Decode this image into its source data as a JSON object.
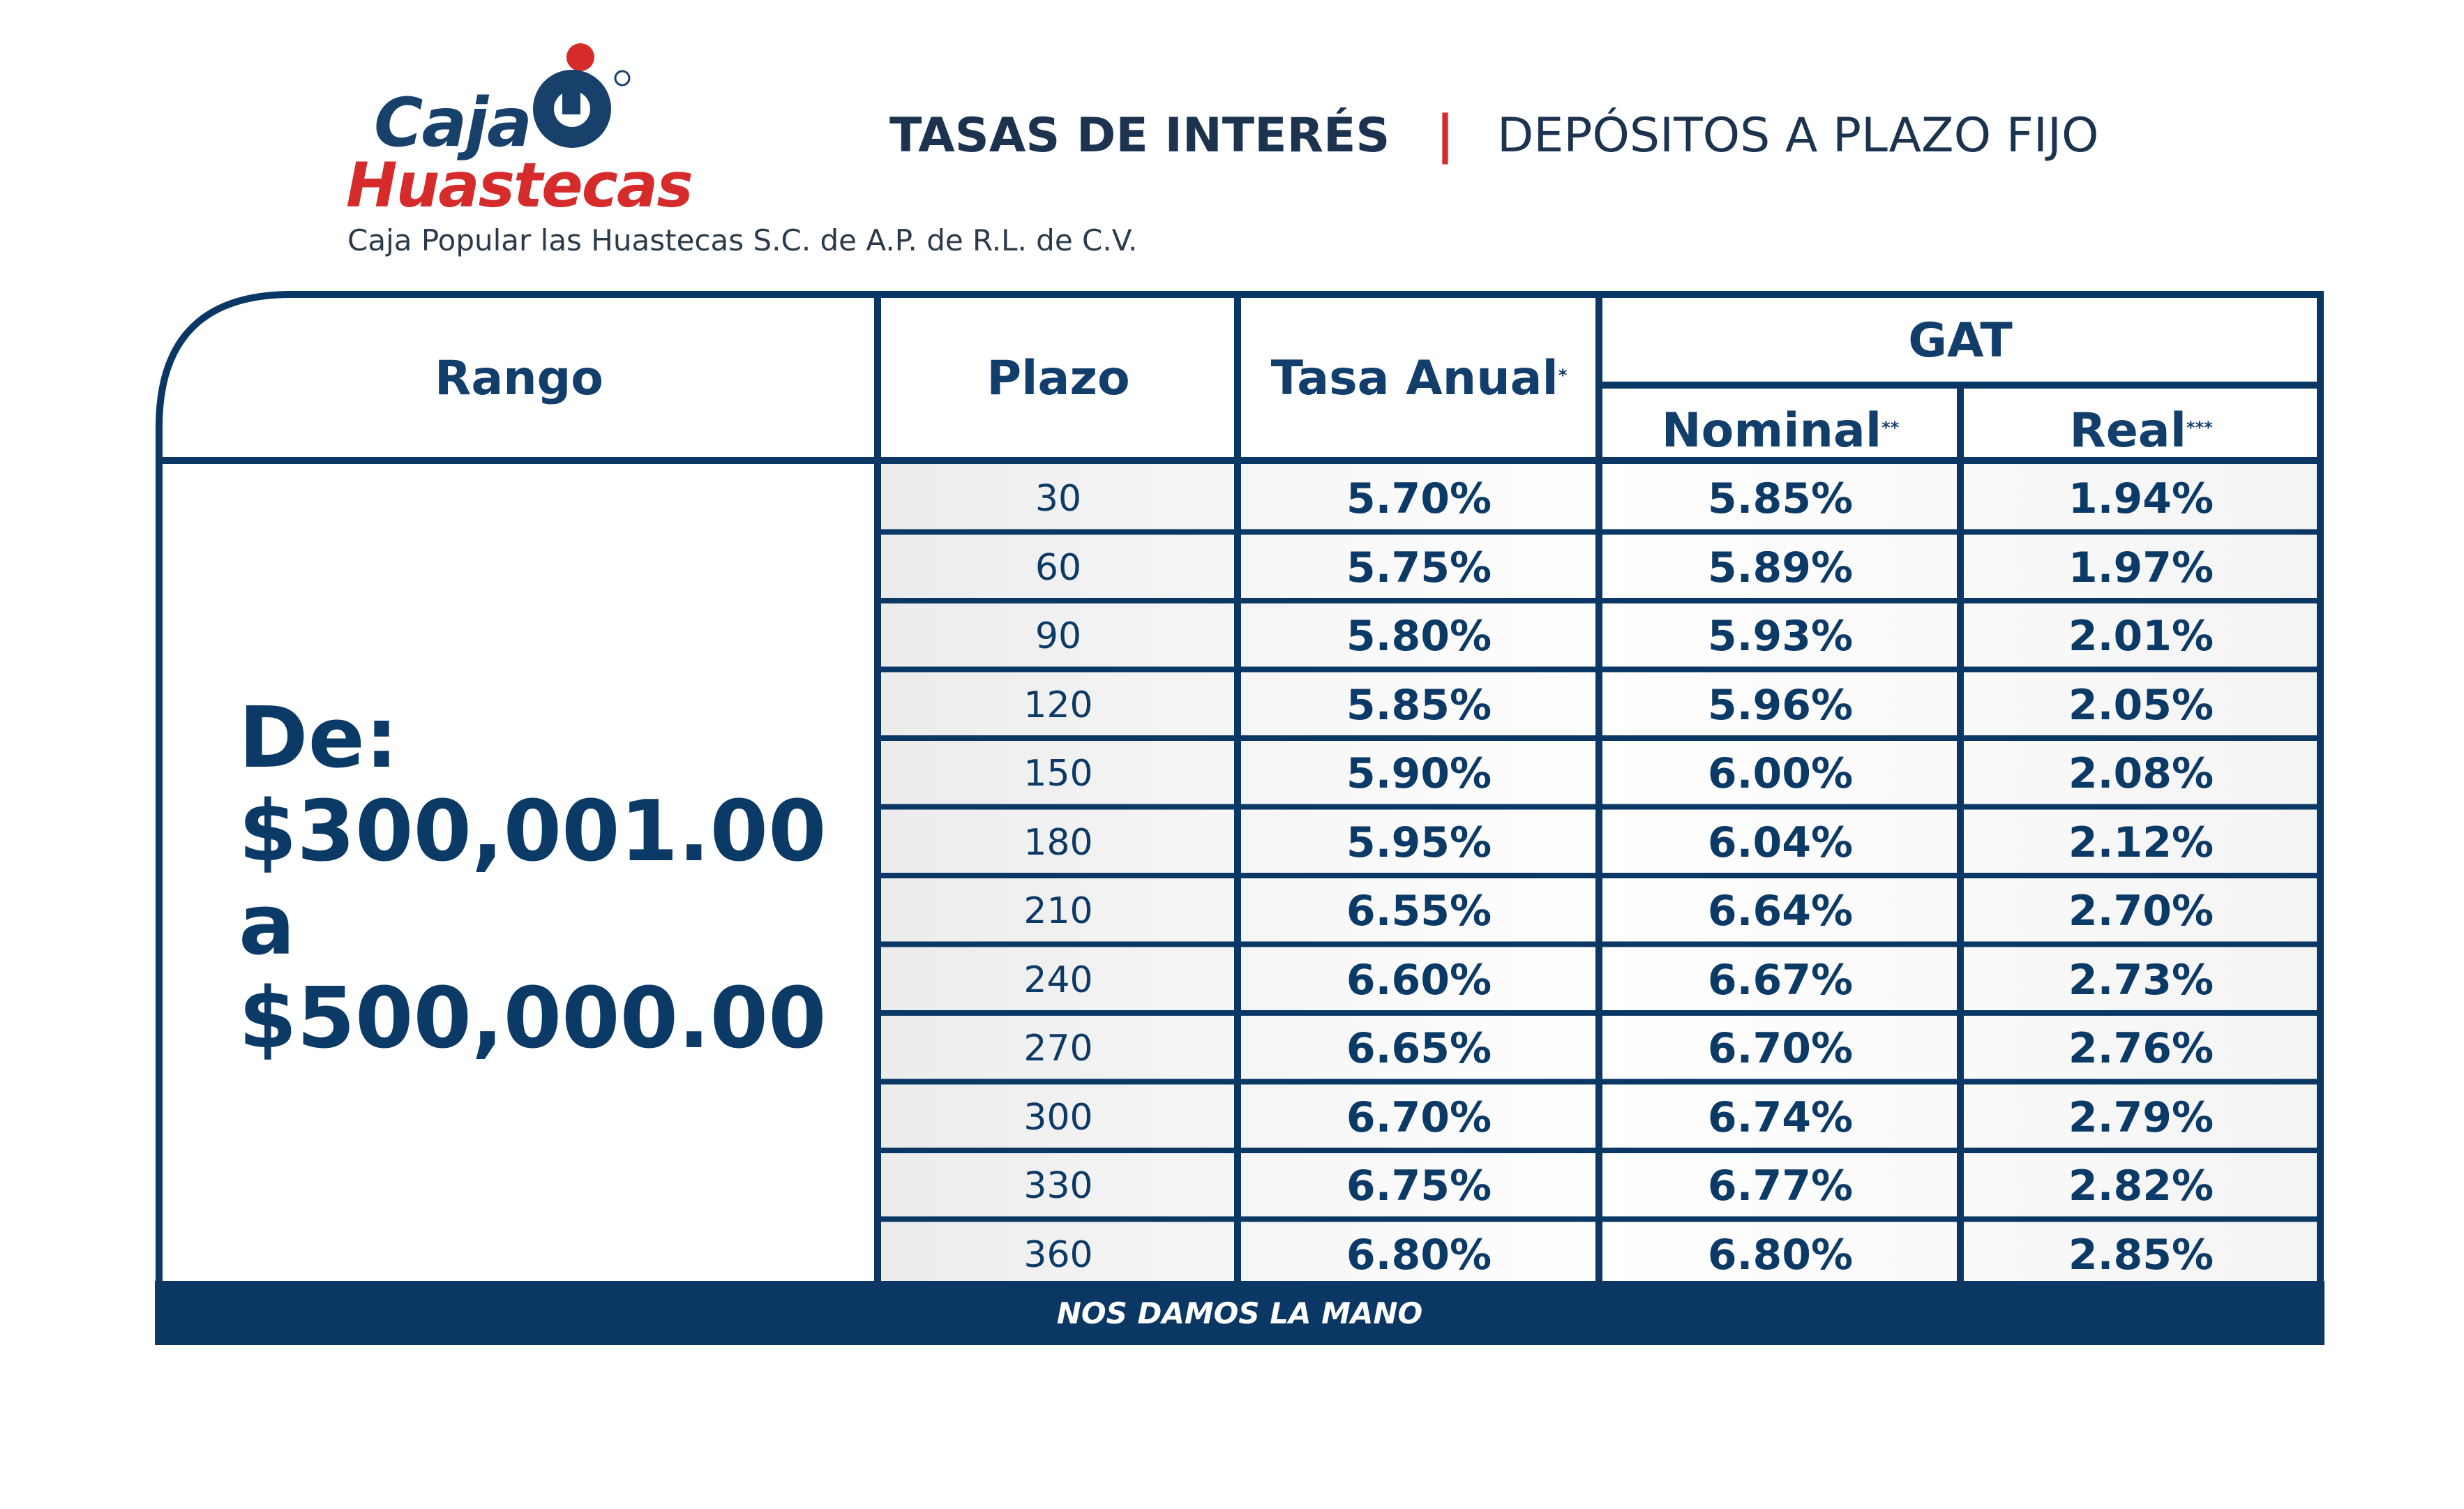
{
  "brand": {
    "logo_line1": "Caja",
    "logo_line2": "Huastecas",
    "registered_mark": "®",
    "legal_name": "Caja Popular las Huastecas S.C. de A.P.  de R.L. de C.V.",
    "colors": {
      "navy": "#0c3a66",
      "red": "#d62b2b"
    }
  },
  "header": {
    "left": "TASAS DE INTERÉS",
    "separator": "|",
    "right": "DEPÓSITOS A PLAZO FIJO"
  },
  "table": {
    "headers": {
      "rango": "Rango",
      "plazo": "Plazo",
      "tasa_anual": "Tasa Anual",
      "tasa_anual_mark": "*",
      "gat": "GAT",
      "nominal": "Nominal",
      "nominal_mark": "**",
      "real": "Real",
      "real_mark": "***"
    },
    "range": {
      "line1": "De:",
      "line2": "$300,001.00",
      "line3": "a",
      "line4": "$500,000.00"
    },
    "rows": [
      {
        "plazo": "30",
        "tasa": "5.70%",
        "nominal": "5.85%",
        "real": "1.94%"
      },
      {
        "plazo": "60",
        "tasa": "5.75%",
        "nominal": "5.89%",
        "real": "1.97%"
      },
      {
        "plazo": "90",
        "tasa": "5.80%",
        "nominal": "5.93%",
        "real": "2.01%"
      },
      {
        "plazo": "120",
        "tasa": "5.85%",
        "nominal": "5.96%",
        "real": "2.05%"
      },
      {
        "plazo": "150",
        "tasa": "5.90%",
        "nominal": "6.00%",
        "real": "2.08%"
      },
      {
        "plazo": "180",
        "tasa": "5.95%",
        "nominal": "6.04%",
        "real": "2.12%"
      },
      {
        "plazo": "210",
        "tasa": "6.55%",
        "nominal": "6.64%",
        "real": "2.70%"
      },
      {
        "plazo": "240",
        "tasa": "6.60%",
        "nominal": "6.67%",
        "real": "2.73%"
      },
      {
        "plazo": "270",
        "tasa": "6.65%",
        "nominal": "6.70%",
        "real": "2.76%"
      },
      {
        "plazo": "300",
        "tasa": "6.70%",
        "nominal": "6.74%",
        "real": "2.79%"
      },
      {
        "plazo": "330",
        "tasa": "6.75%",
        "nominal": "6.77%",
        "real": "2.82%"
      },
      {
        "plazo": "360",
        "tasa": "6.80%",
        "nominal": "6.80%",
        "real": "2.85%"
      }
    ]
  },
  "footer": {
    "slogan": "NOS DAMOS LA MANO"
  }
}
